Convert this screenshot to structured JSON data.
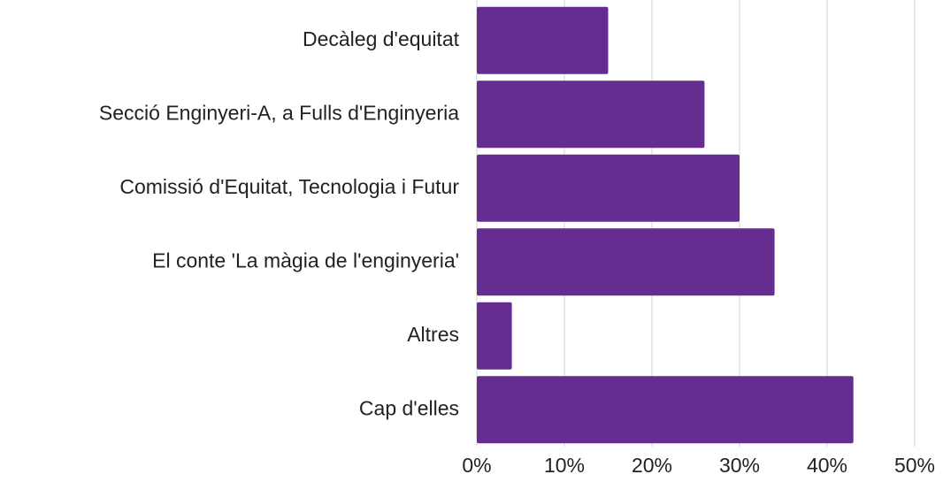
{
  "chart_data": {
    "type": "bar",
    "orientation": "horizontal",
    "categories": [
      "Decàleg d'equitat",
      "Secció Enginyeri-A, a Fulls d'Enginyeria",
      "Comissió d'Equitat, Tecnologia i Futur",
      "El conte 'La màgia de l'enginyeria'",
      "Altres",
      "Cap d'elles"
    ],
    "values": [
      15,
      26,
      30,
      34,
      4,
      43
    ],
    "color": "#652d8f",
    "xlim": [
      0,
      50
    ],
    "xticks": [
      {
        "value": 0,
        "label": "0%"
      },
      {
        "value": 10,
        "label": "10%"
      },
      {
        "value": 20,
        "label": "20%"
      },
      {
        "value": 30,
        "label": "30%"
      },
      {
        "value": 40,
        "label": "40%"
      },
      {
        "value": 50,
        "label": "50%"
      }
    ],
    "grid": true
  }
}
